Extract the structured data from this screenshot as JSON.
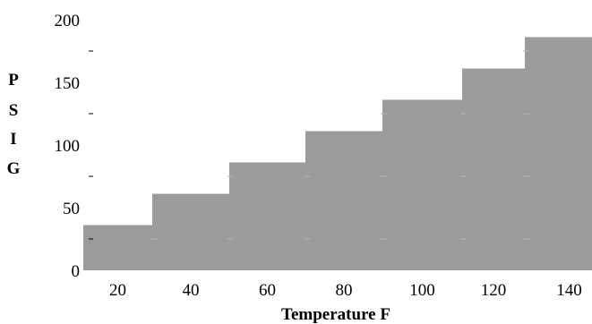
{
  "chart_data": {
    "type": "bar",
    "title": "",
    "xlabel": "Temperature F",
    "ylabel": "PSIG",
    "ylabel_letters": [
      "P",
      "S",
      "I",
      "G"
    ],
    "categories": [
      "20",
      "40",
      "60",
      "80",
      "100",
      "120",
      "140"
    ],
    "values": [
      36,
      61,
      86,
      111,
      136,
      161,
      186
    ],
    "ylim": [
      0,
      200
    ],
    "y_ticks": [
      "0",
      "50",
      "100",
      "150",
      "200"
    ],
    "x_ticks": [
      "20",
      "40",
      "60",
      "80",
      "100",
      "120",
      "140"
    ],
    "grid": false,
    "bar_color": "#9b9b9b",
    "series": [
      {
        "values": [
          36,
          61,
          86,
          111,
          136,
          161,
          186
        ]
      }
    ]
  }
}
